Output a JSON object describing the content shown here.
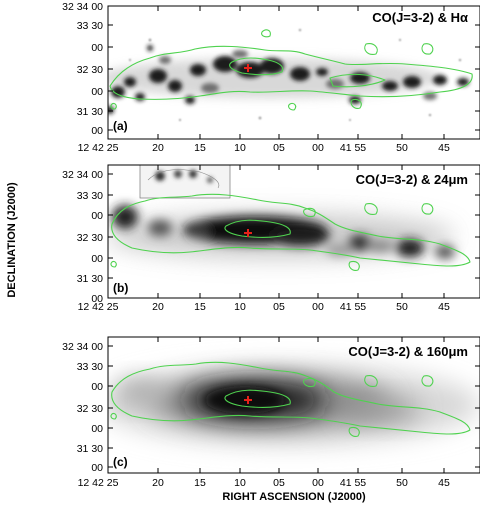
{
  "figure": {
    "x_axis_title": "RIGHT ASCENSION (J2000)",
    "y_axis_title": "DECLINATION (J2000)",
    "x_tick_labels": [
      "12 42 25",
      "20",
      "15",
      "10",
      "05",
      "00",
      "41 55",
      "50",
      "45"
    ],
    "y_tick_labels": [
      "32 34 00",
      "33 30",
      "00",
      "32 30",
      "00",
      "31 30",
      "00"
    ],
    "panels": [
      {
        "id": "a",
        "letter": "(a)",
        "title": "CO(J=3-2) & Hα"
      },
      {
        "id": "b",
        "letter": "(b)",
        "title": "CO(J=3-2) & 24μm"
      },
      {
        "id": "c",
        "letter": "(c)",
        "title": "CO(J=3-2) & 160μm"
      }
    ]
  },
  "colors": {
    "contour": "#4fd24f",
    "marker": "#e8221a",
    "frame": "#000000"
  },
  "chart_data": {
    "type": "heatmap",
    "x_unit": "right ascension offset (seconds, 12h42m25s to 12h41m45s)",
    "x_ticks": [
      25,
      20,
      15,
      10,
      5,
      0,
      -5,
      -10,
      -15
    ],
    "y_ticks_arcsec_from_32d34m00s": [
      0,
      -30,
      -60,
      -90,
      -120,
      -150,
      -180
    ],
    "marker": {
      "ra_sec": 8.0,
      "dec_label": "32 32 30 approx"
    }
  }
}
